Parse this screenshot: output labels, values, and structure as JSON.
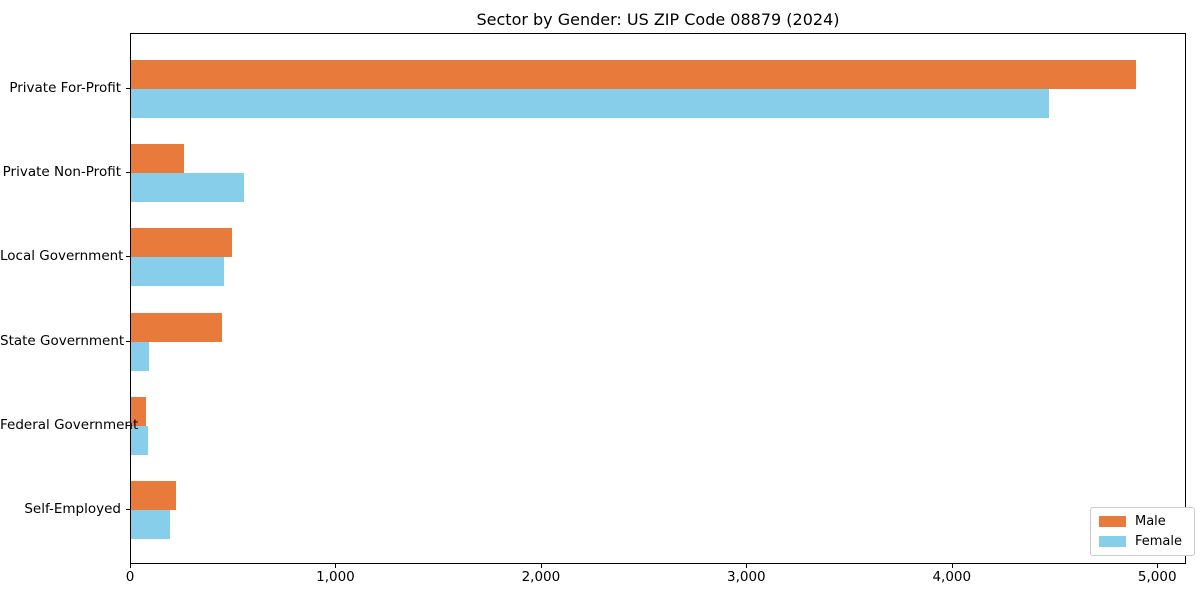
{
  "chart_data": {
    "type": "bar",
    "orientation": "horizontal",
    "title": "Sector by Gender: US ZIP Code 08879 (2024)",
    "categories": [
      "Private For-Profit",
      "Private Non-Profit",
      "Local Government",
      "State Government",
      "Federal Government",
      "Self-Employed"
    ],
    "series": [
      {
        "name": "Male",
        "color": "#e87b3c",
        "values": [
          4890,
          260,
          490,
          445,
          75,
          220
        ]
      },
      {
        "name": "Female",
        "color": "#87ceeb",
        "values": [
          4470,
          550,
          455,
          90,
          85,
          190
        ]
      }
    ],
    "xlabel": "",
    "ylabel": "",
    "xlim": [
      0,
      5140
    ],
    "xticks": {
      "values": [
        0,
        1000,
        2000,
        3000,
        4000,
        5000
      ],
      "labels": [
        "0",
        "1,000",
        "2,000",
        "3,000",
        "4,000",
        "5,000"
      ]
    },
    "grid": false,
    "legend": {
      "position": "lower right",
      "border_color": "#cccccc"
    },
    "axis_color": "#000000",
    "background": "#ffffff"
  }
}
